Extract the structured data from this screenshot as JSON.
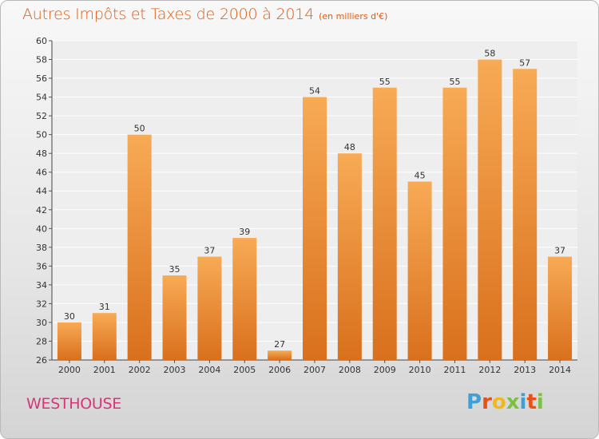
{
  "title": "Autres Impôts et Taxes de 2000 à 2014",
  "subtitle": "(en milliers d'€)",
  "location": "WESTHOUSE",
  "logo_text": "Proxiti",
  "logo_colors": [
    "#3fa0d8",
    "#e8501a",
    "#f0b81b",
    "#7cc242",
    "#3fa0d8",
    "#e8501a",
    "#7cc242"
  ],
  "colors": {
    "bar_light": "#f8aa55",
    "bar_dark": "#d9701d",
    "title": "#e05a10",
    "city": "#d9347a"
  },
  "chart_data": {
    "type": "bar",
    "categories": [
      "2000",
      "2001",
      "2002",
      "2003",
      "2004",
      "2005",
      "2006",
      "2007",
      "2008",
      "2009",
      "2010",
      "2011",
      "2012",
      "2013",
      "2014"
    ],
    "values": [
      30,
      31,
      50,
      35,
      37,
      39,
      27,
      54,
      48,
      55,
      45,
      55,
      58,
      57,
      37
    ],
    "ylim": [
      26,
      60
    ],
    "yticks": [
      26,
      28,
      30,
      32,
      34,
      36,
      38,
      40,
      42,
      44,
      46,
      48,
      50,
      52,
      54,
      56,
      58,
      60
    ],
    "grid": true,
    "data_labels": true
  }
}
